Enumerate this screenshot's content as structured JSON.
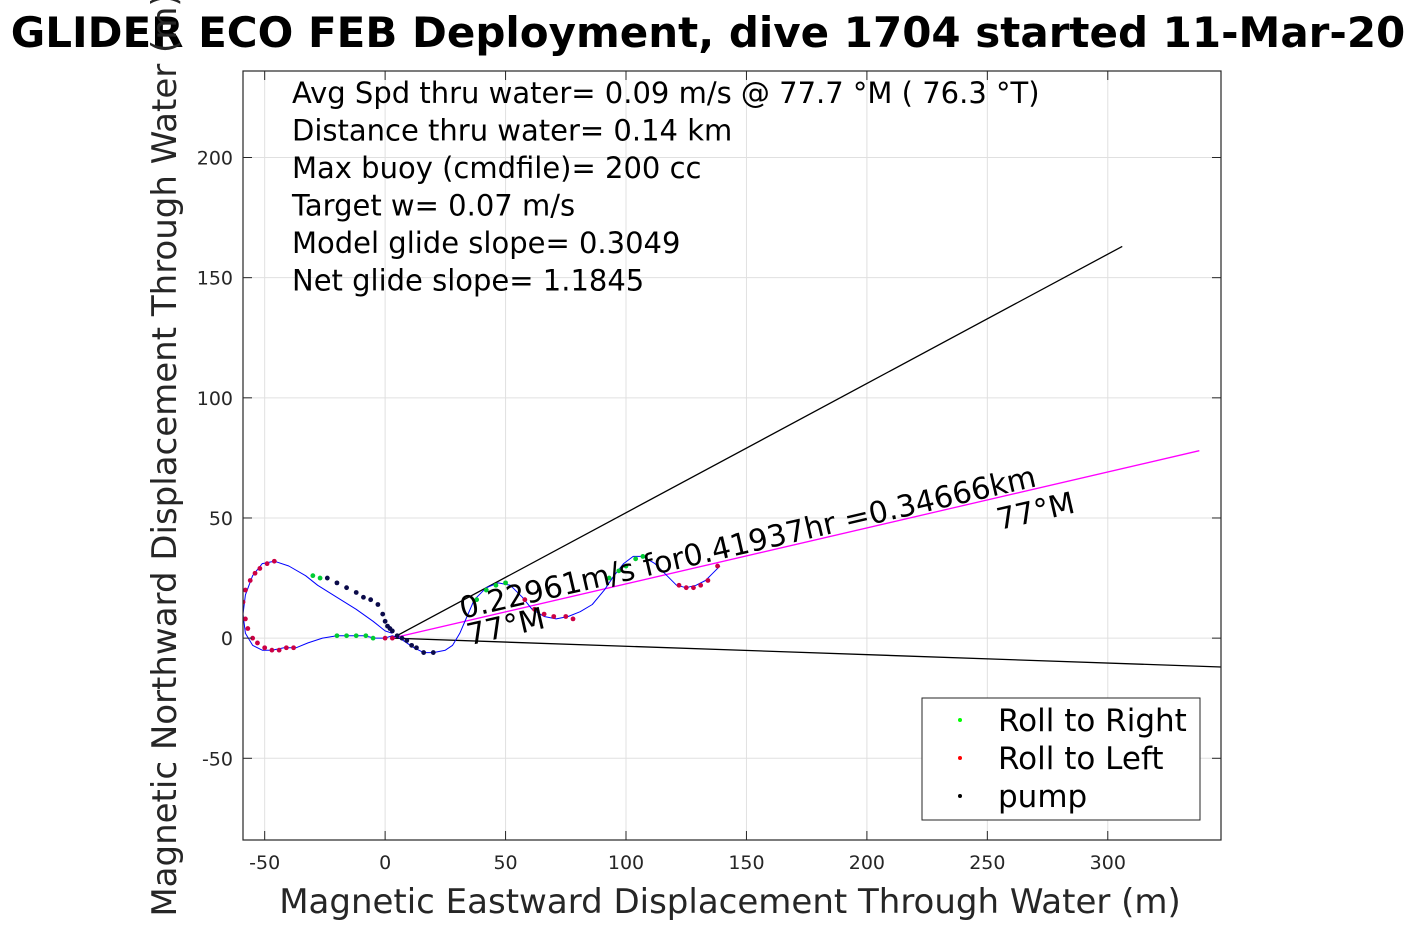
{
  "chart_data": {
    "type": "scatter",
    "title": "GLIDER ECO FEB Deployment, dive 1704 started 11-Mar-20",
    "xlabel": "Magnetic Eastward Displacement Through Water (m)",
    "ylabel": "Magnetic Northward Displacement Through Water (m)",
    "xlim": [
      -59,
      347
    ],
    "ylim": [
      -84,
      236
    ],
    "xticks": [
      -50,
      0,
      50,
      100,
      150,
      200,
      250,
      300
    ],
    "yticks": [
      -50,
      0,
      50,
      100,
      150,
      200
    ],
    "grid": true,
    "info_lines": [
      "Avg Spd thru water=  0.09 m/s @  77.7 °M ( 76.3 °T)",
      "Distance thru water=  0.14 km",
      "Max buoy (cmdfile)= 200 cc",
      "Target w= 0.07 m/s",
      "Model glide slope= 0.3049",
      "Net glide slope= 1.1845"
    ],
    "legend": {
      "placement": "bottom-right",
      "entries": [
        {
          "label": "Roll to Right",
          "color": "#00ff00"
        },
        {
          "label": "Roll to Left",
          "color": "#ff0000"
        },
        {
          "label": "pump",
          "color": "#000000"
        }
      ]
    },
    "annotations": [
      {
        "text": "0.22961m/s for0.41937hr =0.34666km",
        "x": 32,
        "y": 8,
        "rotation_deg": -13
      },
      {
        "text": "77°M",
        "x": 35,
        "y": -3,
        "rotation_deg": -13
      },
      {
        "text": "77°M",
        "x": 255,
        "y": 45,
        "rotation_deg": -13
      }
    ],
    "reference_lines": [
      {
        "name": "upper bound",
        "color": "#000000",
        "x": [
          3,
          306
        ],
        "y": [
          0,
          163
        ]
      },
      {
        "name": "lower bound",
        "color": "#000000",
        "x": [
          3,
          347
        ],
        "y": [
          0,
          -12
        ]
      },
      {
        "name": "net track",
        "color": "#ff00ff",
        "x": [
          3,
          338
        ],
        "y": [
          0,
          78
        ]
      }
    ],
    "track": {
      "color": "#0000ff",
      "x": [
        3,
        0,
        -5,
        -12,
        -20,
        -28,
        -33,
        -40,
        -46,
        -51,
        -55,
        -58,
        -59,
        -58,
        -55,
        -51,
        -47,
        -42,
        -37,
        -32,
        -26,
        -20,
        -14,
        -9,
        -4,
        0,
        3,
        6,
        9,
        12,
        16,
        20,
        25,
        28,
        31,
        34,
        37,
        42,
        47,
        52,
        57,
        61,
        66,
        71,
        76,
        81,
        86,
        91,
        95,
        99,
        103,
        107,
        112,
        117,
        121,
        125,
        129,
        133,
        136,
        139
      ],
      "y": [
        2,
        3,
        7,
        12,
        17,
        22,
        26,
        30,
        32,
        31,
        26,
        18,
        10,
        2,
        -3,
        -5,
        -5,
        -4,
        -4,
        -2,
        0,
        1,
        1,
        1,
        0,
        0,
        1,
        0,
        -2,
        -4,
        -6,
        -6,
        -5,
        -3,
        2,
        9,
        16,
        21,
        23,
        22,
        17,
        12,
        9,
        8,
        9,
        11,
        14,
        20,
        26,
        31,
        34,
        34,
        31,
        26,
        22,
        21,
        22,
        24,
        27,
        30
      ]
    },
    "point_groups": [
      {
        "label": "Roll to Right",
        "color": "#00cc33",
        "x": [
          -30,
          -27,
          -20,
          -16,
          -12,
          -8,
          -5,
          38,
          42,
          46,
          50,
          93,
          97,
          100,
          104,
          107
        ],
        "y": [
          26,
          25,
          1,
          1,
          1,
          1,
          0,
          16,
          20,
          22,
          23,
          25,
          28,
          30,
          33,
          34
        ]
      },
      {
        "label": "Roll to Left",
        "color": "#cc0044",
        "x": [
          -46,
          -49,
          -52,
          -54,
          -56,
          -58,
          -59,
          -58,
          -57,
          -55,
          -53,
          -50,
          -47,
          -44,
          -41,
          -38,
          0,
          3,
          58,
          62,
          66,
          70,
          75,
          78,
          122,
          125,
          128,
          131,
          134,
          138
        ],
        "y": [
          32,
          31,
          29,
          27,
          24,
          20,
          15,
          8,
          4,
          0,
          -2,
          -4,
          -5,
          -5,
          -4,
          -4,
          0,
          0,
          16,
          12,
          10,
          9,
          9,
          8,
          22,
          21,
          21,
          22,
          24,
          30
        ]
      },
      {
        "label": "pump",
        "color": "#0a0a4a",
        "x": [
          -24,
          -20,
          -16,
          -12,
          -9,
          -6,
          -3,
          -1,
          0,
          1,
          2,
          3,
          5,
          7,
          9,
          11,
          13,
          16,
          20
        ],
        "y": [
          25,
          23,
          21,
          19,
          17,
          16,
          14,
          10,
          7,
          5,
          4,
          3,
          1,
          0,
          -1,
          -3,
          -4,
          -6,
          -6
        ]
      }
    ]
  }
}
